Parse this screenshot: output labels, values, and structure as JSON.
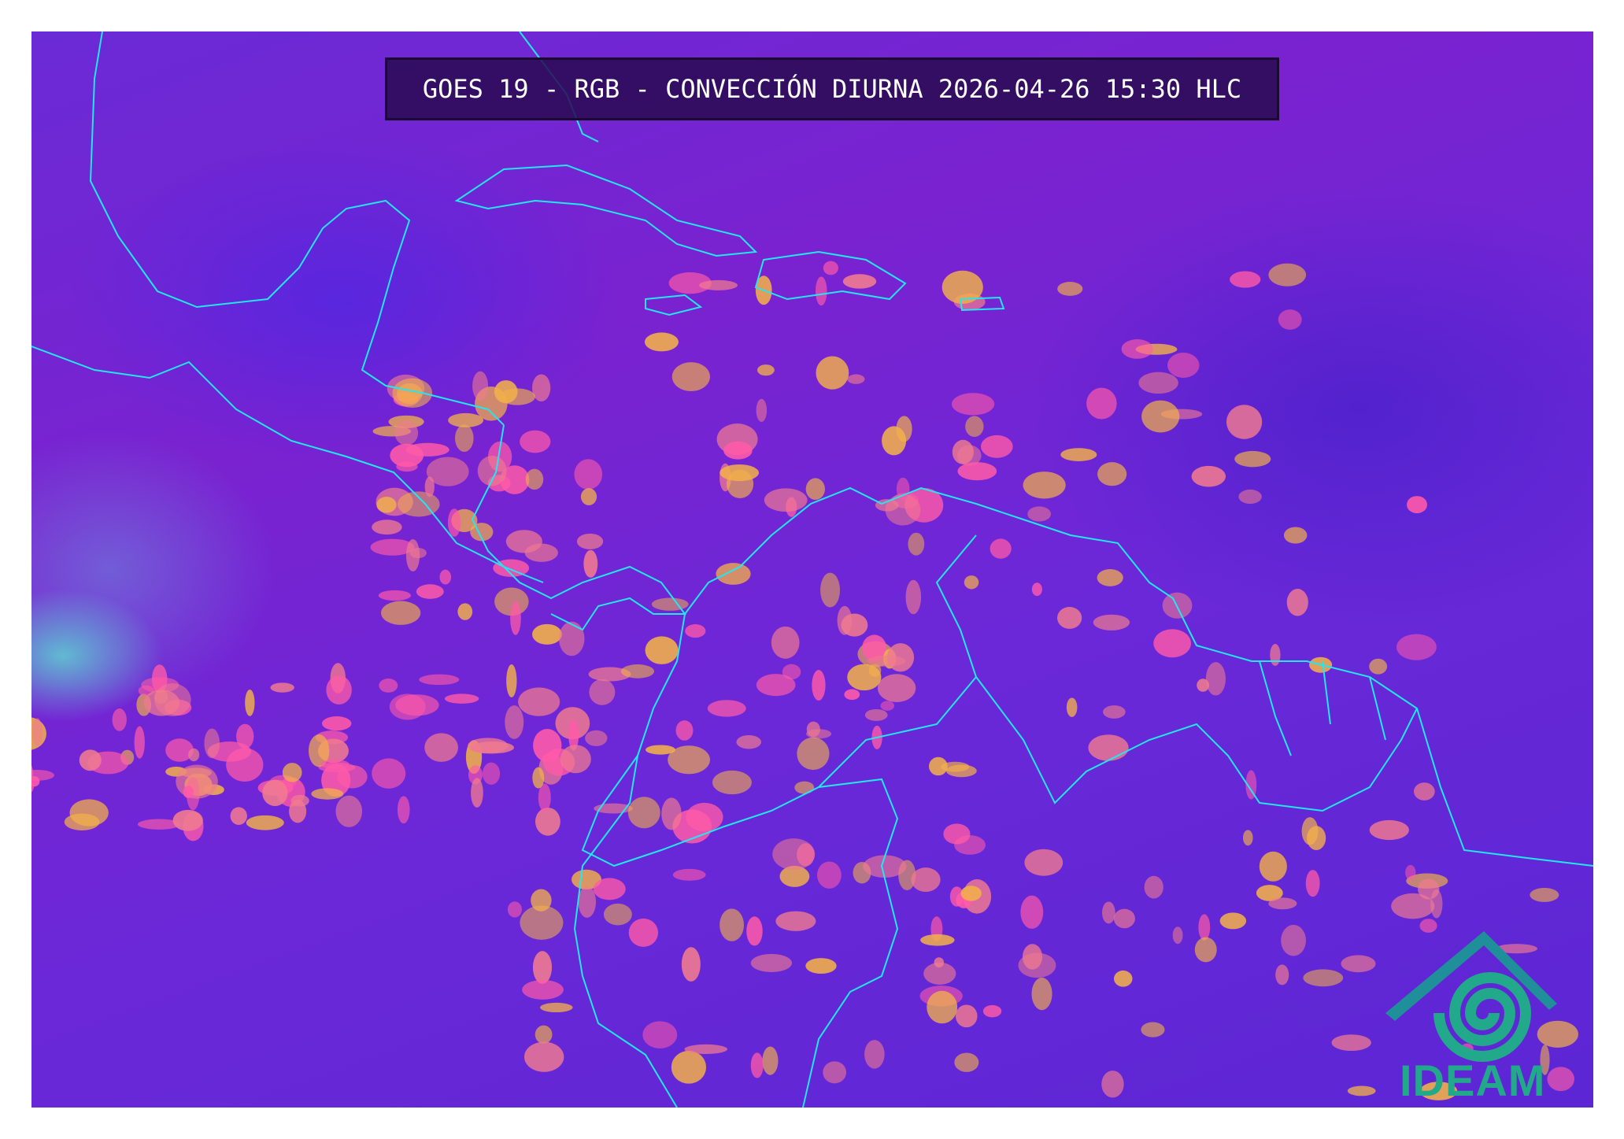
{
  "title": "GOES 19 - RGB - CONVECCIÓN DIURNA 2026-04-26 15:30 HLC",
  "logo": {
    "text": "IDEAM",
    "color": "#22a88a"
  },
  "map": {
    "product": "RGB Convección Diurna",
    "border_color": "#22e6f0",
    "background_color": "#6a28d8",
    "convection_colors": [
      "#f2b04a",
      "#f07a90",
      "#ff5aa8"
    ]
  }
}
